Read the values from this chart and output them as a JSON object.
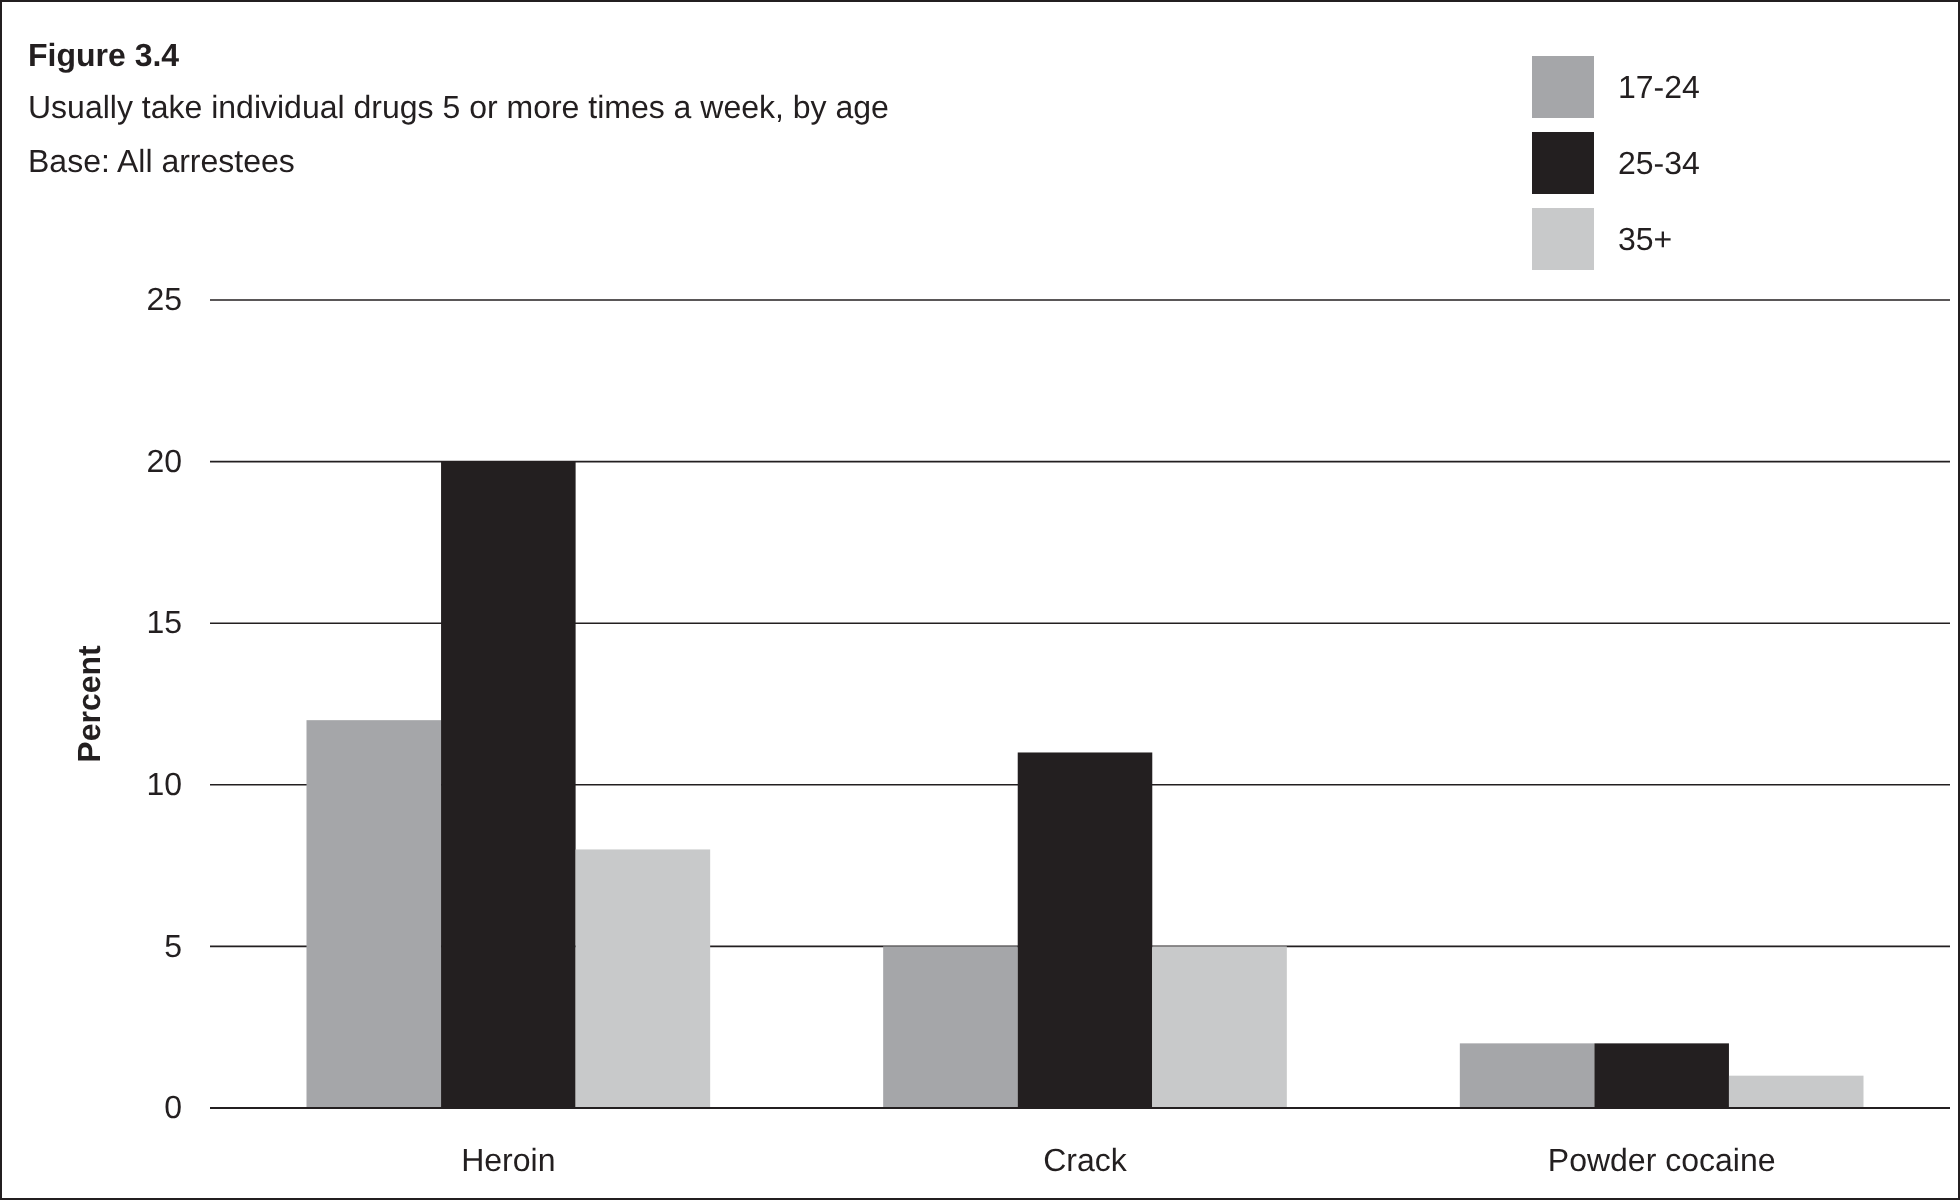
{
  "chart_data": {
    "type": "bar",
    "title": "Figure 3.4",
    "subtitle": "Usually take individual drugs 5 or more times a week, by age\nBase: All arrestees",
    "ylabel": "Percent",
    "categories": [
      "Heroin",
      "Crack",
      "Powder cocaine"
    ],
    "series": [
      {
        "name": "17-24",
        "color": "#a5a6a9",
        "values": [
          12,
          5,
          2
        ]
      },
      {
        "name": "25-34",
        "color": "#231f20",
        "values": [
          20,
          11,
          2
        ]
      },
      {
        "name": "35+",
        "color": "#c8c9ca",
        "values": [
          8,
          5,
          1
        ]
      }
    ],
    "ylim": [
      0,
      25
    ],
    "yticks": [
      0,
      5,
      10,
      15,
      20,
      25
    ],
    "grid": "y",
    "legend": "top right"
  }
}
